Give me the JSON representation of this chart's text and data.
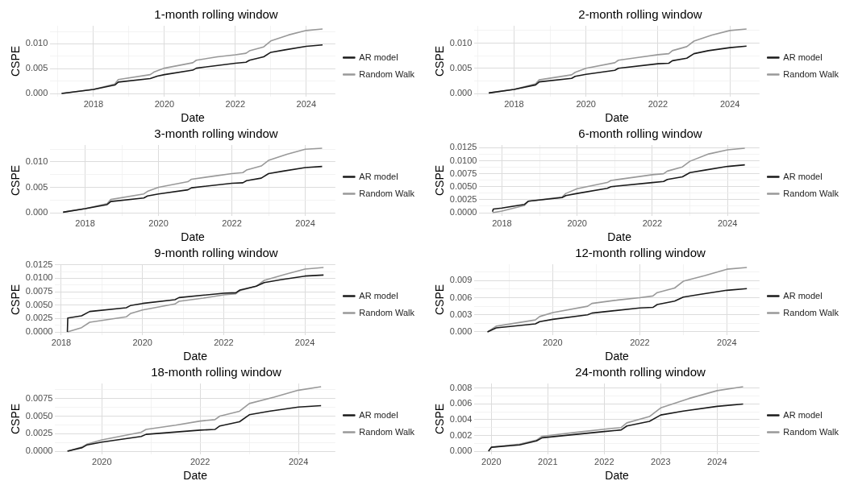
{
  "chart_data": [
    {
      "type": "line",
      "title": "1-month rolling window",
      "xlabel": "Date",
      "ylabel": "CSPE",
      "legend": "right",
      "grid": true,
      "marker": "none",
      "line_style": "solid",
      "xlim": [
        2016.78,
        2024.82
      ],
      "ylim": [
        -0.00065,
        0.01365
      ],
      "xticks": [
        {
          "value": 2017,
          "label": null
        },
        2018,
        {
          "value": 2019,
          "label": null
        },
        2020,
        {
          "value": 2021,
          "label": null
        },
        2022,
        {
          "value": 2023,
          "label": null
        },
        2024
      ],
      "yticks": [
        {
          "value": 0,
          "label": "0.000"
        },
        {
          "value": 0.0025,
          "label": null
        },
        {
          "value": 0.005,
          "label": "0.005"
        },
        {
          "value": 0.0075,
          "label": null
        },
        {
          "value": 0.01,
          "label": "0.010"
        },
        {
          "value": 0.0125,
          "label": null
        }
      ],
      "series": [
        {
          "name": "AR model",
          "color": "#1a1a1a",
          "x": [
            2017.1,
            2018,
            2018.6,
            2018.7,
            2019.6,
            2019.8,
            2020,
            2020.8,
            2020.9,
            2022,
            2022.3,
            2022.4,
            2022.8,
            2023,
            2023.4,
            2024,
            2024.46
          ],
          "values": [
            0,
            0.0008,
            0.0017,
            0.0023,
            0.003,
            0.0035,
            0.0038,
            0.0047,
            0.0051,
            0.0061,
            0.0063,
            0.0067,
            0.0074,
            0.0083,
            0.0088,
            0.0095,
            0.0098
          ]
        },
        {
          "name": "Random Walk",
          "color": "#999999",
          "x": [
            2017.1,
            2018,
            2018.6,
            2018.7,
            2019.6,
            2019.7,
            2020,
            2020.8,
            2020.9,
            2021.5,
            2022,
            2022.3,
            2022.4,
            2022.8,
            2023,
            2023.5,
            2024,
            2024.46
          ],
          "values": [
            0,
            0.0008,
            0.0019,
            0.0028,
            0.0038,
            0.0043,
            0.0051,
            0.0062,
            0.0067,
            0.0074,
            0.0078,
            0.0081,
            0.0086,
            0.0094,
            0.0106,
            0.0118,
            0.0127,
            0.013
          ]
        }
      ]
    },
    {
      "type": "line",
      "title": "2-month rolling window",
      "xlabel": "Date",
      "ylabel": "CSPE",
      "legend": "right",
      "grid": true,
      "marker": "none",
      "line_style": "solid",
      "xlim": [
        2016.9,
        2024.82
      ],
      "ylim": [
        -0.00064,
        0.01344
      ],
      "xticks": [
        {
          "value": 2017,
          "label": null
        },
        2018,
        {
          "value": 2019,
          "label": null
        },
        2020,
        {
          "value": 2021,
          "label": null
        },
        2022,
        {
          "value": 2023,
          "label": null
        },
        2024
      ],
      "yticks": [
        {
          "value": 0,
          "label": "0.000"
        },
        {
          "value": 0.0025,
          "label": null
        },
        {
          "value": 0.005,
          "label": "0.005"
        },
        {
          "value": 0.0075,
          "label": null
        },
        {
          "value": 0.01,
          "label": "0.010"
        },
        {
          "value": 0.0125,
          "label": null
        }
      ],
      "series": [
        {
          "name": "AR model",
          "color": "#1a1a1a",
          "x": [
            2017.3,
            2018,
            2018.6,
            2018.7,
            2019.6,
            2019.7,
            2020,
            2020.8,
            2020.9,
            2022,
            2022.3,
            2022.4,
            2022.8,
            2023,
            2023.4,
            2024,
            2024.46
          ],
          "values": [
            0.0001,
            0.0008,
            0.0017,
            0.0023,
            0.003,
            0.0034,
            0.0038,
            0.0046,
            0.005,
            0.0059,
            0.006,
            0.0065,
            0.007,
            0.0079,
            0.0085,
            0.0091,
            0.0094
          ]
        },
        {
          "name": "Random Walk",
          "color": "#999999",
          "x": [
            2017.3,
            2018,
            2018.6,
            2018.7,
            2019.6,
            2019.7,
            2020,
            2020.8,
            2020.9,
            2021.5,
            2022,
            2022.3,
            2022.4,
            2022.8,
            2023,
            2023.5,
            2024,
            2024.46
          ],
          "values": [
            0.0001,
            0.0008,
            0.0019,
            0.0027,
            0.0037,
            0.0042,
            0.005,
            0.0061,
            0.0066,
            0.0072,
            0.0077,
            0.0079,
            0.0085,
            0.0093,
            0.0104,
            0.0116,
            0.0125,
            0.0128
          ]
        }
      ]
    },
    {
      "type": "line",
      "title": "3-month rolling window",
      "xlabel": "Date",
      "ylabel": "CSPE",
      "legend": "right",
      "grid": true,
      "marker": "none",
      "line_style": "solid",
      "xlim": [
        2017.05,
        2024.82
      ],
      "ylim": [
        -0.00063,
        0.01333
      ],
      "xticks": [
        2018,
        {
          "value": 2019,
          "label": null
        },
        2020,
        {
          "value": 2021,
          "label": null
        },
        2022,
        {
          "value": 2023,
          "label": null
        },
        2024
      ],
      "yticks": [
        {
          "value": 0,
          "label": "0.000"
        },
        {
          "value": 0.0025,
          "label": null
        },
        {
          "value": 0.005,
          "label": "0.005"
        },
        {
          "value": 0.0075,
          "label": null
        },
        {
          "value": 0.01,
          "label": "0.010"
        },
        {
          "value": 0.0125,
          "label": null
        }
      ],
      "series": [
        {
          "name": "AR model",
          "color": "#1a1a1a",
          "x": [
            2017.4,
            2018,
            2018.6,
            2018.7,
            2019.6,
            2019.7,
            2020,
            2020.8,
            2020.9,
            2022,
            2022.3,
            2022.4,
            2022.8,
            2023,
            2023.4,
            2024,
            2024.46
          ],
          "values": [
            0.0001,
            0.0008,
            0.0016,
            0.0022,
            0.0029,
            0.0033,
            0.0037,
            0.0045,
            0.0049,
            0.0058,
            0.0059,
            0.0063,
            0.0068,
            0.0077,
            0.0082,
            0.0089,
            0.0091
          ]
        },
        {
          "name": "Random Walk",
          "color": "#999999",
          "x": [
            2017.4,
            2018,
            2018.6,
            2018.7,
            2019.6,
            2019.7,
            2020,
            2020.8,
            2020.9,
            2021.5,
            2022,
            2022.3,
            2022.4,
            2022.8,
            2023,
            2023.5,
            2024,
            2024.46
          ],
          "values": [
            0.0001,
            0.0008,
            0.0018,
            0.0026,
            0.0037,
            0.0042,
            0.005,
            0.0061,
            0.0066,
            0.0072,
            0.0077,
            0.0079,
            0.0084,
            0.0092,
            0.0103,
            0.0115,
            0.0125,
            0.0127
          ]
        }
      ]
    },
    {
      "type": "line",
      "title": "6-month rolling window",
      "xlabel": "Date",
      "ylabel": "CSPE",
      "legend": "right",
      "grid": true,
      "marker": "none",
      "line_style": "solid",
      "xlim": [
        2017.4,
        2024.85
      ],
      "ylim": [
        -0.00062,
        0.01302
      ],
      "xticks": [
        2018,
        {
          "value": 2019,
          "label": null
        },
        2020,
        {
          "value": 2021,
          "label": null
        },
        2022,
        {
          "value": 2023,
          "label": null
        },
        2024
      ],
      "yticks": [
        {
          "value": 0,
          "label": "0.0000"
        },
        {
          "value": 0.00125,
          "label": null
        },
        {
          "value": 0.0025,
          "label": "0.0025"
        },
        {
          "value": 0.00375,
          "label": null
        },
        {
          "value": 0.005,
          "label": "0.0050"
        },
        {
          "value": 0.00625,
          "label": null
        },
        {
          "value": 0.0075,
          "label": "0.0075"
        },
        {
          "value": 0.00875,
          "label": null
        },
        {
          "value": 0.01,
          "label": "0.0100"
        },
        {
          "value": 0.01125,
          "label": null
        },
        {
          "value": 0.0125,
          "label": "0.0125"
        }
      ],
      "series": [
        {
          "name": "AR model",
          "color": "#1a1a1a",
          "x": [
            2017.75,
            2017.77,
            2018,
            2018.6,
            2018.7,
            2019.6,
            2019.7,
            2020,
            2020.8,
            2020.9,
            2022,
            2022.3,
            2022.4,
            2022.8,
            2023,
            2023.4,
            2024,
            2024.46
          ],
          "values": [
            0.0002,
            0.0007,
            0.0009,
            0.0016,
            0.0022,
            0.0029,
            0.0033,
            0.0037,
            0.0047,
            0.005,
            0.0058,
            0.006,
            0.0064,
            0.0069,
            0.0077,
            0.0082,
            0.0089,
            0.0092
          ]
        },
        {
          "name": "Random Walk",
          "color": "#999999",
          "x": [
            2017.75,
            2018,
            2018.6,
            2018.7,
            2019.6,
            2019.7,
            2020,
            2020.8,
            2020.9,
            2021.5,
            2022,
            2022.3,
            2022.4,
            2022.8,
            2023,
            2023.5,
            2024,
            2024.46
          ],
          "values": [
            0,
            0.0003,
            0.0014,
            0.0022,
            0.003,
            0.0037,
            0.0046,
            0.0058,
            0.0062,
            0.0068,
            0.0073,
            0.0075,
            0.008,
            0.0088,
            0.0099,
            0.0113,
            0.0121,
            0.0124
          ]
        }
      ]
    },
    {
      "type": "line",
      "title": "9-month rolling window",
      "xlabel": "Date",
      "ylabel": "CSPE",
      "legend": "right",
      "grid": true,
      "marker": "none",
      "line_style": "solid",
      "xlim": [
        2017.85,
        2024.75
      ],
      "ylim": [
        -0.0006,
        0.0126
      ],
      "xticks": [
        2018,
        {
          "value": 2019,
          "label": null
        },
        2020,
        {
          "value": 2021,
          "label": null
        },
        2022,
        {
          "value": 2023,
          "label": null
        },
        2024
      ],
      "yticks": [
        {
          "value": 0,
          "label": "0.0000"
        },
        {
          "value": 0.00125,
          "label": null
        },
        {
          "value": 0.0025,
          "label": "0.0025"
        },
        {
          "value": 0.00375,
          "label": null
        },
        {
          "value": 0.005,
          "label": "0.0050"
        },
        {
          "value": 0.00625,
          "label": null
        },
        {
          "value": 0.0075,
          "label": "0.0075"
        },
        {
          "value": 0.00875,
          "label": null
        },
        {
          "value": 0.01,
          "label": "0.0100"
        },
        {
          "value": 0.01125,
          "label": null
        },
        {
          "value": 0.0125,
          "label": "0.0125"
        }
      ],
      "series": [
        {
          "name": "AR model",
          "color": "#1a1a1a",
          "x": [
            2018.15,
            2018.16,
            2018.5,
            2018.7,
            2019.6,
            2019.7,
            2020,
            2020.8,
            2020.9,
            2022,
            2022.3,
            2022.4,
            2022.8,
            2023,
            2023.4,
            2024,
            2024.46
          ],
          "values": [
            0,
            0.0026,
            0.003,
            0.0038,
            0.0045,
            0.0049,
            0.0053,
            0.006,
            0.0064,
            0.0072,
            0.0073,
            0.0078,
            0.0085,
            0.0092,
            0.0097,
            0.0104,
            0.0106
          ]
        },
        {
          "name": "Random Walk",
          "color": "#999999",
          "x": [
            2018.15,
            2018.5,
            2018.7,
            2019.6,
            2019.7,
            2020,
            2020.8,
            2020.9,
            2021.5,
            2022,
            2022.3,
            2022.4,
            2022.8,
            2023,
            2023.5,
            2024,
            2024.46
          ],
          "values": [
            0,
            0.0008,
            0.0018,
            0.0028,
            0.0034,
            0.0041,
            0.0052,
            0.0057,
            0.0063,
            0.0069,
            0.0071,
            0.0077,
            0.0085,
            0.0096,
            0.0107,
            0.0117,
            0.012
          ]
        }
      ]
    },
    {
      "type": "line",
      "title": "12-month rolling window",
      "xlabel": "Date",
      "ylabel": "CSPE",
      "legend": "right",
      "grid": true,
      "marker": "none",
      "line_style": "solid",
      "xlim": [
        2018.2,
        2024.75
      ],
      "ylim": [
        -0.00057,
        0.01187
      ],
      "xticks": [
        {
          "value": 2019,
          "label": null
        },
        2020,
        {
          "value": 2021,
          "label": null
        },
        2022,
        {
          "value": 2023,
          "label": null
        },
        2024
      ],
      "yticks": [
        {
          "value": 0,
          "label": "0.000"
        },
        {
          "value": 0.0015,
          "label": null
        },
        {
          "value": 0.003,
          "label": "0.003"
        },
        {
          "value": 0.0045,
          "label": null
        },
        {
          "value": 0.006,
          "label": "0.006"
        },
        {
          "value": 0.0075,
          "label": null
        },
        {
          "value": 0.009,
          "label": "0.009"
        },
        {
          "value": 0.0105,
          "label": null
        }
      ],
      "series": [
        {
          "name": "AR model",
          "color": "#1a1a1a",
          "x": [
            2018.5,
            2018.7,
            2019.6,
            2019.7,
            2020,
            2020.8,
            2020.9,
            2022,
            2022.3,
            2022.4,
            2022.8,
            2023,
            2023.4,
            2024,
            2024.46
          ],
          "values": [
            0,
            0.0007,
            0.0014,
            0.0018,
            0.0022,
            0.003,
            0.0033,
            0.0042,
            0.0043,
            0.0048,
            0.0054,
            0.0061,
            0.0066,
            0.0073,
            0.0076
          ]
        },
        {
          "name": "Random Walk",
          "color": "#999999",
          "x": [
            2018.5,
            2018.7,
            2019.6,
            2019.7,
            2020,
            2020.8,
            2020.9,
            2021.5,
            2022,
            2022.3,
            2022.4,
            2022.8,
            2023,
            2023.5,
            2024,
            2024.46
          ],
          "values": [
            0,
            0.001,
            0.0021,
            0.0027,
            0.0034,
            0.0045,
            0.005,
            0.0056,
            0.006,
            0.0063,
            0.0069,
            0.0077,
            0.0089,
            0.0099,
            0.011,
            0.0113
          ]
        }
      ]
    },
    {
      "type": "line",
      "title": "18-month rolling window",
      "xlabel": "Date",
      "ylabel": "CSPE",
      "legend": "right",
      "grid": true,
      "marker": "none",
      "line_style": "solid",
      "xlim": [
        2019.05,
        2024.75
      ],
      "ylim": [
        -0.00046,
        0.00966
      ],
      "xticks": [
        2020,
        {
          "value": 2021,
          "label": null
        },
        2022,
        {
          "value": 2023,
          "label": null
        },
        2024
      ],
      "yticks": [
        {
          "value": 0,
          "label": "0.0000"
        },
        {
          "value": 0.00125,
          "label": null
        },
        {
          "value": 0.0025,
          "label": "0.0025"
        },
        {
          "value": 0.00375,
          "label": null
        },
        {
          "value": 0.005,
          "label": "0.0050"
        },
        {
          "value": 0.00625,
          "label": null
        },
        {
          "value": 0.0075,
          "label": "0.0075"
        },
        {
          "value": 0.00875,
          "label": null
        }
      ],
      "series": [
        {
          "name": "AR model",
          "color": "#1a1a1a",
          "x": [
            2019.3,
            2019.6,
            2019.7,
            2020,
            2020.8,
            2020.9,
            2022,
            2022.3,
            2022.4,
            2022.8,
            2023,
            2023.4,
            2024,
            2024.46
          ],
          "values": [
            0,
            0.0005,
            0.0009,
            0.0013,
            0.0021,
            0.0024,
            0.003,
            0.0031,
            0.0036,
            0.0042,
            0.0052,
            0.0057,
            0.0063,
            0.0065
          ]
        },
        {
          "name": "Random Walk",
          "color": "#999999",
          "x": [
            2019.3,
            2019.6,
            2019.7,
            2020,
            2020.8,
            2020.9,
            2021.5,
            2022,
            2022.3,
            2022.4,
            2022.8,
            2023,
            2023.5,
            2024,
            2024.46
          ],
          "values": [
            0,
            0.0006,
            0.001,
            0.0016,
            0.0027,
            0.0031,
            0.0037,
            0.0043,
            0.0045,
            0.005,
            0.0057,
            0.0068,
            0.0077,
            0.0087,
            0.0092
          ]
        }
      ]
    },
    {
      "type": "line",
      "title": "24-month rolling window",
      "xlabel": "Date",
      "ylabel": "CSPE",
      "legend": "right",
      "grid": true,
      "marker": "none",
      "line_style": "solid",
      "xlim": [
        2019.7,
        2024.75
      ],
      "ylim": [
        -0.00041,
        0.00861
      ],
      "xticks": [
        2020,
        2021,
        2022,
        2023,
        2024
      ],
      "yticks": [
        {
          "value": 0,
          "label": "0.000"
        },
        {
          "value": 0.001,
          "label": null
        },
        {
          "value": 0.002,
          "label": "0.002"
        },
        {
          "value": 0.003,
          "label": null
        },
        {
          "value": 0.004,
          "label": "0.004"
        },
        {
          "value": 0.005,
          "label": null
        },
        {
          "value": 0.006,
          "label": "0.006"
        },
        {
          "value": 0.007,
          "label": null
        },
        {
          "value": 0.008,
          "label": "0.008"
        }
      ],
      "series": [
        {
          "name": "AR model",
          "color": "#1a1a1a",
          "x": [
            2019.95,
            2020,
            2020.5,
            2020.8,
            2020.9,
            2022,
            2022.3,
            2022.4,
            2022.8,
            2023,
            2023.4,
            2024,
            2024.46
          ],
          "values": [
            0,
            0.0005,
            0.0008,
            0.0013,
            0.0017,
            0.0025,
            0.0027,
            0.0032,
            0.0038,
            0.0046,
            0.0051,
            0.0057,
            0.006
          ]
        },
        {
          "name": "Random Walk",
          "color": "#999999",
          "x": [
            2019.95,
            2020,
            2020.5,
            2020.8,
            2020.9,
            2021.5,
            2022,
            2022.3,
            2022.4,
            2022.8,
            2023,
            2023.5,
            2024,
            2024.46
          ],
          "values": [
            0,
            0.0005,
            0.0009,
            0.0014,
            0.0019,
            0.0024,
            0.0028,
            0.003,
            0.0036,
            0.0044,
            0.0055,
            0.0067,
            0.0077,
            0.0082
          ]
        }
      ]
    }
  ]
}
